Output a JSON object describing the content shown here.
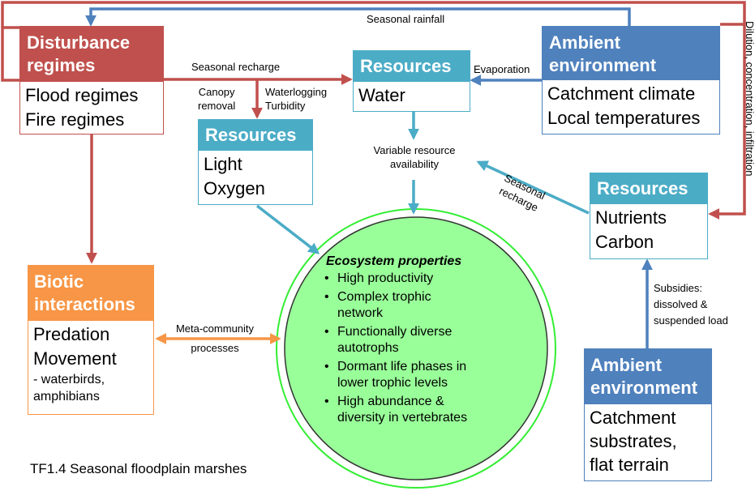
{
  "colors": {
    "red": "#c0504d",
    "blue": "#4f81bd",
    "teal": "#4bacc6",
    "orange": "#f79646",
    "green_fill": "#99ff99",
    "green_ring": "#33ee33"
  },
  "boxes": {
    "disturbance": {
      "title_line1": "Disturbance",
      "title_line2": "regimes",
      "item1": "Flood regimes",
      "item2": "Fire regimes"
    },
    "ambient_top": {
      "title_line1": "Ambient",
      "title_line2": "environment",
      "item1": "Catchment climate",
      "item2": "Local temperatures"
    },
    "resources_water": {
      "title": "Resources",
      "item1": "Water"
    },
    "resources_light": {
      "title": "Resources",
      "item1": "Light",
      "item2": "Oxygen"
    },
    "resources_nutrients": {
      "title": "Resources",
      "item1": "Nutrients",
      "item2": "Carbon"
    },
    "biotic": {
      "title_line1": "Biotic",
      "title_line2": "interactions",
      "item1": "Predation",
      "item2": "Movement",
      "item3": "- waterbirds,",
      "item4": "amphibians"
    },
    "ambient_bottom": {
      "title_line1": "Ambient",
      "title_line2": "environment",
      "item1": "Catchment",
      "item2": "substrates,",
      "item3": "flat terrain"
    }
  },
  "ecosystem": {
    "title": "Ecosystem properties",
    "items": [
      {
        "l1": "High productivity",
        "l2": ""
      },
      {
        "l1": "Complex trophic",
        "l2": "network"
      },
      {
        "l1": "Functionally diverse",
        "l2": "autotrophs"
      },
      {
        "l1": "Dormant life phases in",
        "l2": "lower trophic levels"
      },
      {
        "l1": "High abundance &",
        "l2": "diversity in vertebrates"
      }
    ]
  },
  "labels": {
    "seasonal_rainfall": "Seasonal rainfall",
    "seasonal_recharge_top": "Seasonal recharge",
    "evaporation": "Evaporation",
    "canopy_1": "Canopy",
    "canopy_2": "removal",
    "waterlogging": "Waterlogging",
    "turbidity": "Turbidity",
    "variable_1": "Variable resource",
    "variable_2": "availability",
    "seasonal_recharge_diag_1": "Seasonal",
    "seasonal_recharge_diag_2": "recharge",
    "dilution": "Dilution, concentration, infiltration",
    "subsidies_1": "Subsidies:",
    "subsidies_2": "dissolved &",
    "subsidies_3": "suspended load",
    "meta_1": "Meta-community",
    "meta_2": "processes",
    "caption": "TF1.4 Seasonal floodplain marshes"
  }
}
